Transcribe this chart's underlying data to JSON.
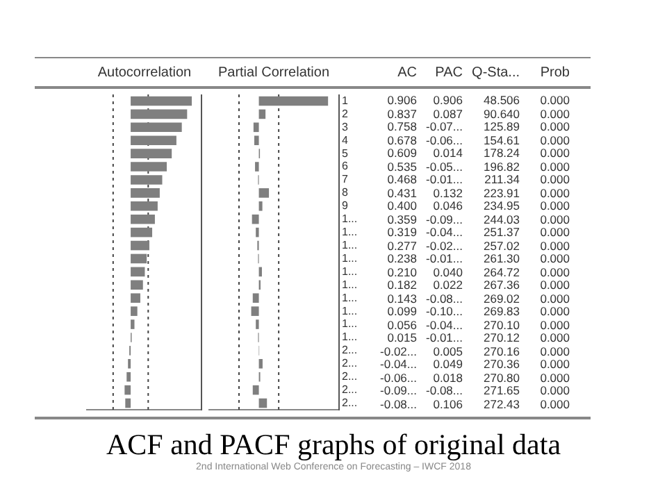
{
  "chart_data": [
    {
      "type": "bar",
      "orientation": "horizontal",
      "title": "Autocorrelation",
      "categories": [
        "1",
        "2",
        "3",
        "4",
        "5",
        "6",
        "7",
        "8",
        "9",
        "1...",
        "1...",
        "1...",
        "1...",
        "1...",
        "1...",
        "1...",
        "1...",
        "1...",
        "1...",
        "2...",
        "2...",
        "2...",
        "2...",
        "2..."
      ],
      "series": [
        {
          "name": "AC",
          "color": "#7f7f7f",
          "values": [
            0.906,
            0.837,
            0.758,
            0.678,
            0.609,
            0.535,
            0.468,
            0.431,
            0.4,
            0.359,
            0.319,
            0.277,
            0.238,
            0.21,
            0.182,
            0.143,
            0.099,
            0.056,
            0.015,
            -0.02,
            -0.04,
            -0.06,
            -0.09,
            -0.08
          ],
          "value_labels": [
            "0.906",
            "0.837",
            "0.758",
            "0.678",
            "0.609",
            "0.535",
            "0.468",
            "0.431",
            "0.400",
            "0.359",
            "0.319",
            "0.277",
            "0.238",
            "0.210",
            "0.182",
            "0.143",
            "0.099",
            "0.056",
            "0.015",
            "-0.02...",
            "-0.04...",
            "-0.06...",
            "-0.09...",
            "-0.08..."
          ]
        }
      ],
      "xlim": [
        -0.66,
        1.05
      ],
      "tick_labels": false,
      "legend": false,
      "ref_lines": [
        {
          "axis": "x",
          "value": -0.26,
          "line_style": "dotted"
        },
        {
          "axis": "x",
          "value": 0.26,
          "line_style": "dotted"
        }
      ]
    },
    {
      "type": "bar",
      "orientation": "horizontal",
      "title": "Partial Correlation",
      "categories": [
        "1",
        "2",
        "3",
        "4",
        "5",
        "6",
        "7",
        "8",
        "9",
        "1...",
        "1...",
        "1...",
        "1...",
        "1...",
        "1...",
        "1...",
        "1...",
        "1...",
        "1...",
        "2...",
        "2...",
        "2...",
        "2...",
        "2..."
      ],
      "series": [
        {
          "name": "PAC",
          "color": "#7f7f7f",
          "values": [
            0.906,
            0.087,
            -0.07,
            -0.06,
            0.014,
            -0.05,
            -0.01,
            0.132,
            0.046,
            -0.09,
            -0.04,
            -0.02,
            -0.01,
            0.04,
            0.022,
            -0.08,
            -0.1,
            -0.04,
            -0.01,
            0.005,
            0.049,
            0.018,
            -0.08,
            0.106
          ],
          "value_labels": [
            "0.906",
            "0.087",
            "-0.07...",
            "-0.06...",
            "0.014",
            "-0.05...",
            "-0.01...",
            "0.132",
            "0.046",
            "-0.09...",
            "-0.04...",
            "-0.02...",
            "-0.01...",
            "0.040",
            "0.022",
            "-0.08...",
            "-0.10...",
            "-0.04...",
            "-0.01...",
            "0.005",
            "0.049",
            "0.018",
            "-0.08...",
            "0.106"
          ]
        }
      ],
      "xlim": [
        -0.66,
        1.05
      ],
      "tick_labels": "y",
      "legend": false,
      "ref_lines": [
        {
          "axis": "x",
          "value": -0.26,
          "line_style": "dotted"
        },
        {
          "axis": "x",
          "value": 0.26,
          "line_style": "dotted"
        }
      ]
    },
    {
      "type": "other",
      "annotations": [
        "Q-Sta...",
        "Prob",
        "48.506",
        "0.000",
        "90.640",
        "0.000",
        "125.89",
        "0.000",
        "154.61",
        "0.000",
        "178.24",
        "0.000",
        "196.82",
        "0.000",
        "211.34",
        "0.000",
        "223.91",
        "0.000",
        "234.95",
        "0.000",
        "244.03",
        "0.000",
        "251.37",
        "0.000",
        "257.02",
        "0.000",
        "261.30",
        "0.000",
        "264.72",
        "0.000",
        "267.36",
        "0.000",
        "269.02",
        "0.000",
        "269.83",
        "0.000",
        "270.10",
        "0.000",
        "270.12",
        "0.000",
        "270.16",
        "0.000",
        "270.36",
        "0.000",
        "270.80",
        "0.000",
        "271.65",
        "0.000",
        "272.43",
        "0.000"
      ]
    },
    {
      "type": "other",
      "title": "ACF and PACF graphs of original data",
      "annotations": [
        "2nd International Web Conference on Forecasting – IWCF 2018"
      ]
    }
  ]
}
